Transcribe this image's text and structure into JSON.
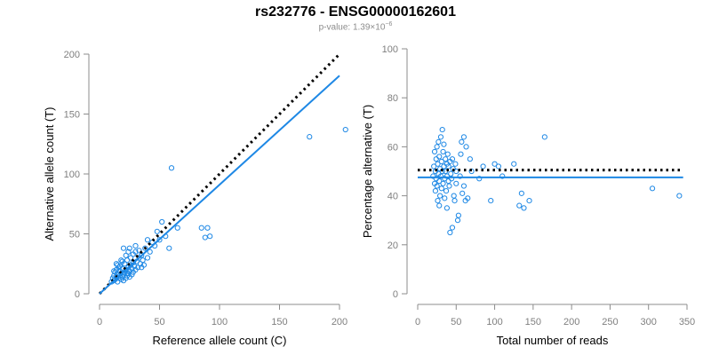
{
  "header": {
    "title": "rs232776 - ENSG00000162601",
    "pvalue_prefix": "p-value: 1.39×10",
    "pvalue_exponent": "−6"
  },
  "colors": {
    "point": "#1e88e5",
    "fit_line": "#1e88e5",
    "reference_line": "#000000",
    "axis": "#8c8c8c",
    "tick_label": "#7f7f7f",
    "axis_title": "#000000"
  },
  "chart_data": [
    {
      "type": "scatter",
      "xlabel": "Reference allele count (C)",
      "ylabel": "Alternative allele count (T)",
      "xlim": [
        0,
        200
      ],
      "ylim": [
        0,
        200
      ],
      "xticks": [
        0,
        50,
        100,
        150,
        200
      ],
      "yticks": [
        0,
        50,
        100,
        150,
        200
      ],
      "grid": false,
      "points": [
        [
          10,
          10
        ],
        [
          11,
          13
        ],
        [
          12,
          11
        ],
        [
          12,
          15
        ],
        [
          13,
          12
        ],
        [
          13,
          18
        ],
        [
          14,
          14
        ],
        [
          14,
          20
        ],
        [
          15,
          10
        ],
        [
          15,
          16
        ],
        [
          16,
          13
        ],
        [
          16,
          22
        ],
        [
          17,
          15
        ],
        [
          17,
          19
        ],
        [
          18,
          12
        ],
        [
          18,
          17
        ],
        [
          19,
          14
        ],
        [
          19,
          21
        ],
        [
          20,
          16
        ],
        [
          20,
          11
        ],
        [
          21,
          18
        ],
        [
          21,
          25
        ],
        [
          22,
          13
        ],
        [
          22,
          20
        ],
        [
          23,
          15
        ],
        [
          23,
          28
        ],
        [
          24,
          17
        ],
        [
          24,
          22
        ],
        [
          25,
          19
        ],
        [
          25,
          14
        ],
        [
          26,
          24
        ],
        [
          26,
          30
        ],
        [
          27,
          16
        ],
        [
          27,
          21
        ],
        [
          28,
          18
        ],
        [
          28,
          26
        ],
        [
          29,
          23
        ],
        [
          30,
          20
        ],
        [
          30,
          35
        ],
        [
          31,
          27
        ],
        [
          32,
          22
        ],
        [
          33,
          30
        ],
        [
          34,
          25
        ],
        [
          35,
          32
        ],
        [
          36,
          28
        ],
        [
          37,
          24
        ],
        [
          38,
          38
        ],
        [
          40,
          30
        ],
        [
          42,
          35
        ],
        [
          44,
          43
        ],
        [
          46,
          40
        ],
        [
          48,
          52
        ],
        [
          50,
          45
        ],
        [
          52,
          60
        ],
        [
          55,
          48
        ],
        [
          58,
          38
        ],
        [
          60,
          105
        ],
        [
          65,
          55
        ],
        [
          85,
          55
        ],
        [
          88,
          47
        ],
        [
          90,
          55
        ],
        [
          92,
          48
        ],
        [
          175,
          131
        ],
        [
          205,
          137
        ],
        [
          14,
          25
        ],
        [
          18,
          28
        ],
        [
          22,
          32
        ],
        [
          20,
          38
        ],
        [
          25,
          38
        ],
        [
          15,
          24
        ],
        [
          12,
          19
        ],
        [
          17,
          23
        ],
        [
          30,
          40
        ],
        [
          35,
          22
        ],
        [
          28,
          33
        ],
        [
          24,
          35
        ],
        [
          19,
          27
        ],
        [
          23,
          17
        ],
        [
          33,
          36
        ],
        [
          40,
          45
        ]
      ],
      "fit_line": {
        "x": [
          0,
          200
        ],
        "y": [
          0,
          182
        ]
      },
      "reference_line": {
        "x": [
          0,
          200
        ],
        "y": [
          0,
          200
        ]
      }
    },
    {
      "type": "scatter",
      "xlabel": "Total number of reads",
      "ylabel": "Percentage alternative (T)",
      "xlim": [
        0,
        350
      ],
      "ylim": [
        0,
        100
      ],
      "xticks": [
        0,
        50,
        100,
        150,
        200,
        250,
        300,
        350
      ],
      "yticks": [
        0,
        20,
        40,
        60,
        80,
        100
      ],
      "grid": false,
      "points": [
        [
          20,
          48
        ],
        [
          21,
          52
        ],
        [
          22,
          45
        ],
        [
          22,
          58
        ],
        [
          23,
          50
        ],
        [
          23,
          42
        ],
        [
          24,
          55
        ],
        [
          24,
          47
        ],
        [
          25,
          60
        ],
        [
          25,
          44
        ],
        [
          26,
          53
        ],
        [
          26,
          38
        ],
        [
          27,
          49
        ],
        [
          27,
          62
        ],
        [
          28,
          46
        ],
        [
          28,
          56
        ],
        [
          29,
          51
        ],
        [
          29,
          40
        ],
        [
          30,
          64
        ],
        [
          30,
          48
        ],
        [
          31,
          54
        ],
        [
          31,
          43
        ],
        [
          32,
          67
        ],
        [
          32,
          50
        ],
        [
          33,
          58
        ],
        [
          33,
          45
        ],
        [
          34,
          61
        ],
        [
          34,
          52
        ],
        [
          35,
          47
        ],
        [
          35,
          39
        ],
        [
          36,
          55
        ],
        [
          36,
          50
        ],
        [
          37,
          42
        ],
        [
          38,
          53
        ],
        [
          38,
          48
        ],
        [
          39,
          57
        ],
        [
          40,
          46
        ],
        [
          40,
          52
        ],
        [
          41,
          44
        ],
        [
          42,
          25
        ],
        [
          42,
          54
        ],
        [
          43,
          49
        ],
        [
          44,
          47
        ],
        [
          45,
          55
        ],
        [
          46,
          51
        ],
        [
          47,
          40
        ],
        [
          48,
          38
        ],
        [
          49,
          53
        ],
        [
          50,
          45
        ],
        [
          52,
          30
        ],
        [
          53,
          32
        ],
        [
          55,
          48
        ],
        [
          56,
          57
        ],
        [
          57,
          62
        ],
        [
          58,
          41
        ],
        [
          60,
          64
        ],
        [
          60,
          44
        ],
        [
          62,
          38
        ],
        [
          63,
          60
        ],
        [
          65,
          39
        ],
        [
          68,
          55
        ],
        [
          70,
          50
        ],
        [
          80,
          47
        ],
        [
          85,
          52
        ],
        [
          95,
          38
        ],
        [
          100,
          53
        ],
        [
          105,
          52
        ],
        [
          110,
          48
        ],
        [
          125,
          53
        ],
        [
          132,
          36
        ],
        [
          135,
          41
        ],
        [
          138,
          35
        ],
        [
          145,
          38
        ],
        [
          165,
          64
        ],
        [
          305,
          43
        ],
        [
          340,
          40
        ],
        [
          45,
          27
        ],
        [
          38,
          35
        ],
        [
          28,
          36
        ],
        [
          50,
          50
        ]
      ],
      "fit_line": {
        "x": [
          0,
          345
        ],
        "y": [
          47.5,
          47.5
        ]
      },
      "reference_line": {
        "x": [
          0,
          345
        ],
        "y": [
          50.5,
          50.5
        ]
      }
    }
  ]
}
